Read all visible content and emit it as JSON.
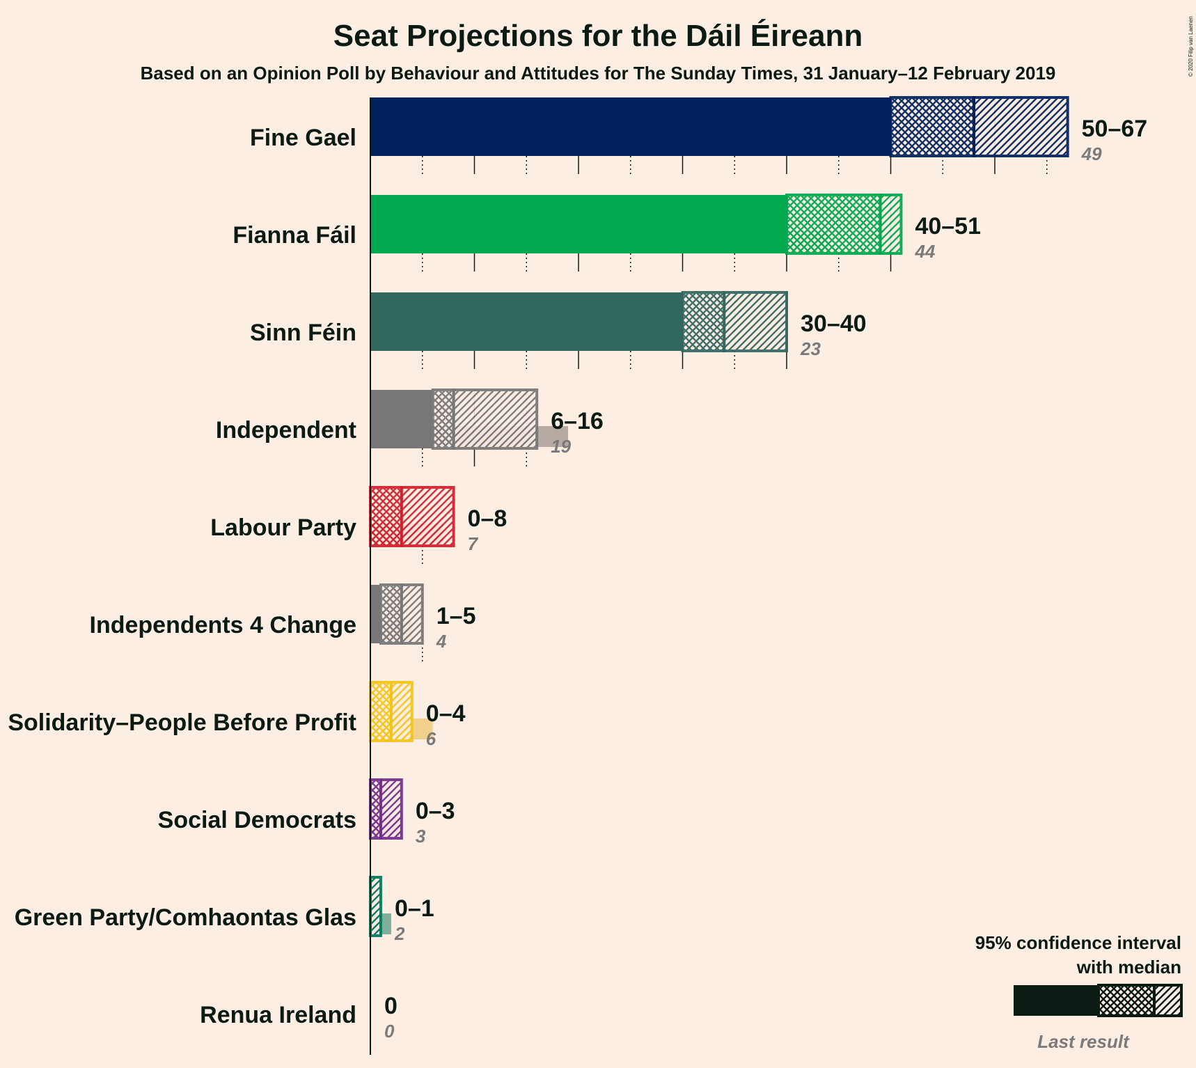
{
  "title": "Seat Projections for the Dáil Éireann",
  "subtitle": "Based on an Opinion Poll by Behaviour and Attitudes for The Sunday Times, 31 January–12 February 2019",
  "copyright": "© 2020 Filip van Laenen",
  "legend": {
    "title_line1": "95% confidence interval",
    "title_line2": "with median",
    "last_result": "Last result"
  },
  "chart_data": {
    "type": "bar",
    "orientation": "horizontal",
    "x_range": [
      0,
      67
    ],
    "grid": "solid every 10 seats, dotted at intermediate 5s",
    "categories": [
      "Fine Gael",
      "Fianna Fáil",
      "Sinn Féin",
      "Independent",
      "Labour Party",
      "Independents 4 Change",
      "Solidarity–People Before Profit",
      "Social Democrats",
      "Green Party/Comhaontas Glas",
      "Renua Ireland"
    ],
    "series": [
      {
        "name": "95% confidence interval",
        "low": [
          50,
          40,
          30,
          6,
          0,
          1,
          0,
          0,
          0,
          0
        ],
        "median": [
          58,
          49,
          34,
          8,
          3,
          3,
          2,
          1,
          0,
          0
        ],
        "high": [
          67,
          51,
          40,
          16,
          8,
          5,
          4,
          3,
          1,
          0
        ],
        "range_labels": [
          "50–67",
          "40–51",
          "30–40",
          "6–16",
          "0–8",
          "1–5",
          "0–4",
          "0–3",
          "0–1",
          "0"
        ]
      },
      {
        "name": "Last result",
        "values": [
          49,
          44,
          23,
          19,
          7,
          4,
          6,
          3,
          2,
          0
        ],
        "value_labels": [
          "49",
          "44",
          "23",
          "19",
          "7",
          "4",
          "6",
          "3",
          "2",
          "0"
        ]
      }
    ],
    "colors": [
      "#00215B",
      "#00A84F",
      "#326760",
      "#777777",
      "#D11F2C",
      "#777777",
      "#F3C416",
      "#752F8B",
      "#00775C",
      "#1E1E1E"
    ],
    "last_colors": [
      "#7E8090",
      "#80B890",
      "#96A49A",
      "#B6AAA2",
      "#D98083",
      "#B6AAA2",
      "#F0D18C",
      "#BA93A9",
      "#7FAE9C",
      "#8E8A86"
    ]
  }
}
